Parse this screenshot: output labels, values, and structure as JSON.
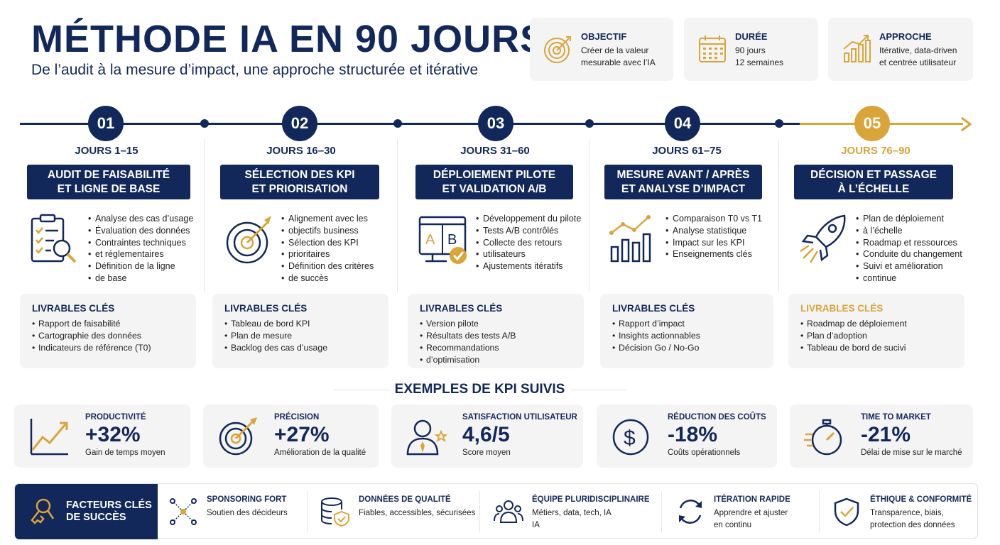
{
  "header": {
    "title": "MÉTHODE IA EN 90 JOURS",
    "subtitle": "De l’audit à la mesure d’impact, une approche structurée et itérative"
  },
  "info_cards": [
    {
      "icon": "target-icon",
      "label": "OBJECTIF",
      "lines": [
        "Créer de la valeur",
        "mesurable avec l’IA"
      ]
    },
    {
      "icon": "calendar-icon",
      "label": "DURÉE",
      "lines": [
        "90 jours",
        "12 semaines"
      ]
    },
    {
      "icon": "growth-chart-icon",
      "label": "APPROCHE",
      "lines": [
        "Itérative, data-driven",
        "et centrée utilisateur"
      ]
    }
  ],
  "phases": [
    {
      "number": "01",
      "days": "JOURS 1–15",
      "title_lines": [
        "AUDIT DE FAISABILITÉ",
        "ET LIGNE DE BASE"
      ],
      "icon": "clipboard-search-icon",
      "bullets": [
        "Analyse des cas d’usage",
        "Évaluation des données",
        "Contraintes techniques",
        "et réglementaires",
        "Définition de la ligne",
        "de base"
      ],
      "deliverables": [
        "Rapport de faisabilité",
        "Cartographie des données",
        "Indicateurs de référence (T0)"
      ]
    },
    {
      "number": "02",
      "days": "JOURS 16–30",
      "title_lines": [
        "SÉLECTION DES KPI",
        "ET PRIORISATION"
      ],
      "icon": "target-arrow-icon",
      "bullets": [
        "Alignement avec les",
        "objectifs business",
        "Sélection des KPI",
        "prioritaires",
        "Définition des critères",
        "de succès"
      ],
      "deliverables": [
        "Tableau de bord KPI",
        "Plan de mesure",
        "Backlog des cas d’usage"
      ]
    },
    {
      "number": "03",
      "days": "JOURS 31–60",
      "title_lines": [
        "DÉPLOIEMENT PILOTE",
        "ET VALIDATION A/B"
      ],
      "icon": "ab-test-icon",
      "bullets": [
        "Développement du pilote",
        "Tests A/B contrôlés",
        "Collecte des retours",
        "utilisateurs",
        "Ajustements itératifs"
      ],
      "deliverables": [
        "Version pilote",
        "Résultats des tests A/B",
        "Recommandations",
        "d’optimisation"
      ]
    },
    {
      "number": "04",
      "days": "JOURS 61–75",
      "title_lines": [
        "MESURE AVANT / APRÈS",
        "ET ANALYSE D’IMPACT"
      ],
      "icon": "bar-chart-icon",
      "bullets": [
        "Comparaison T0 vs T1",
        "Analyse statistique",
        "Impact sur les KPI",
        "Enseignements clés"
      ],
      "deliverables": [
        "Rapport d’impact",
        "Insights actionnables",
        "Décision Go / No-Go"
      ]
    },
    {
      "number": "05",
      "days": "JOURS 76–90",
      "title_lines": [
        "DÉCISION ET PASSAGE",
        "À L’ÉCHELLE"
      ],
      "icon": "rocket-icon",
      "bullets": [
        "Plan de déploiement",
        "à l’échelle",
        "Roadmap et ressources",
        "Conduite du changement",
        "Suivi et amélioration",
        "continue"
      ],
      "deliverables": [
        "Roadmap de déploiement",
        "Plan d’adoption",
        "Tableau de bord de sucivi"
      ]
    }
  ],
  "deliverables_heading": "LIVRABLES CLÉS",
  "kpi_section": {
    "title": "EXEMPLES DE KPI SUIVIS",
    "items": [
      {
        "icon": "trend-up-icon",
        "label": "PRODUCTIVITÉ",
        "value": "+32%",
        "sub": "Gain de temps moyen"
      },
      {
        "icon": "target-arrow-icon",
        "label": "PRÉCISION",
        "value": "+27%",
        "sub": "Amélioration de la qualité"
      },
      {
        "icon": "user-star-icon",
        "label": "SATISFACTION UTILISATEUR",
        "value": "4,6/5",
        "sub": "Score moyen"
      },
      {
        "icon": "dollar-icon",
        "label": "RÉDUCTION DES COÛTS",
        "value": "-18%",
        "sub": "Coûts opérationnels"
      },
      {
        "icon": "stopwatch-icon",
        "label": "TIME TO MARKET",
        "value": "-21%",
        "sub": "Délai de mise sur le marché"
      }
    ]
  },
  "success_factors": {
    "title_lines": [
      "FACTEURS CLÉS",
      "DE SUCCÈS"
    ],
    "items": [
      {
        "icon": "network-icon",
        "label": "SPONSORING FORT",
        "lines": [
          "Soutien des décideurs"
        ]
      },
      {
        "icon": "database-shield-icon",
        "label": "DONNÉES DE QUALITÉ",
        "lines": [
          "Fiables, accessibles, sécurisées"
        ]
      },
      {
        "icon": "team-icon",
        "label": "ÉQUIPE PLURIDISCIPLINAIRE",
        "lines": [
          "Métiers, data, tech, IA",
          "IA"
        ]
      },
      {
        "icon": "refresh-icon",
        "label": "ITÉRATION RAPIDE",
        "lines": [
          "Apprendre et ajuster",
          "en continu"
        ]
      },
      {
        "icon": "shield-check-icon",
        "label": "ÉTHIQUE & CONFORMITÉ",
        "lines": [
          "Transparence, biais,",
          "protection des données"
        ]
      }
    ]
  },
  "colors": {
    "navy": "#13285a",
    "gold": "#d9a43a",
    "card": "#f4f4f4"
  }
}
